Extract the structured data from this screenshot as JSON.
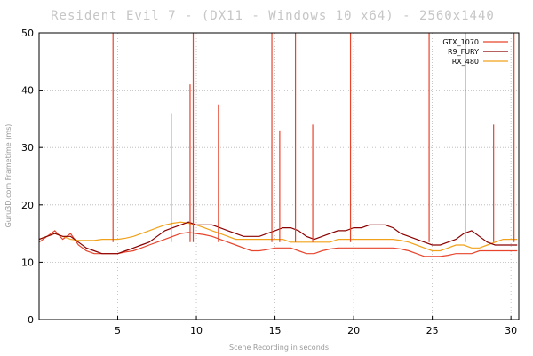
{
  "chart_data": {
    "type": "line",
    "title": "Resident Evil 7 - (DX11 - Windows 10 x64) - 2560x1440",
    "xlabel": "Scene Recording in seconds",
    "ylabel": "Guru3D.com Frametime (ms)",
    "xlim": [
      0,
      30.5
    ],
    "ylim": [
      0,
      50
    ],
    "x_ticks": [
      5,
      10,
      15,
      20,
      25,
      30
    ],
    "y_ticks": [
      0,
      10,
      20,
      30,
      40,
      50
    ],
    "grid": true,
    "legend_position": "top-right",
    "series": [
      {
        "name": "GTX_1070",
        "color": "#e8442c",
        "x": [
          0,
          0.5,
          1,
          1.5,
          2,
          2.5,
          3,
          3.5,
          4,
          4.5,
          5,
          5.5,
          6,
          6.5,
          7,
          7.5,
          8,
          8.5,
          9,
          9.5,
          10,
          10.5,
          11,
          11.5,
          12,
          12.5,
          13,
          13.5,
          14,
          14.5,
          15,
          15.5,
          16,
          16.5,
          17,
          17.5,
          18,
          18.5,
          19,
          19.5,
          20,
          20.5,
          21,
          21.5,
          22,
          22.5,
          23,
          23.5,
          24,
          24.5,
          25,
          25.5,
          26,
          26.5,
          27,
          27.5,
          28,
          28.5,
          29,
          29.5,
          30,
          30.4
        ],
        "y": [
          13.5,
          14.5,
          15.5,
          14.0,
          15.0,
          13.0,
          12.0,
          11.5,
          11.5,
          11.5,
          11.5,
          11.8,
          12.0,
          12.5,
          13.0,
          13.5,
          14.0,
          14.5,
          15.0,
          15.2,
          15.0,
          14.8,
          14.5,
          14.0,
          13.5,
          13.0,
          12.5,
          12.0,
          12.0,
          12.2,
          12.5,
          12.5,
          12.5,
          12.0,
          11.5,
          11.5,
          12.0,
          12.3,
          12.5,
          12.5,
          12.5,
          12.5,
          12.5,
          12.5,
          12.5,
          12.5,
          12.3,
          12.0,
          11.5,
          11.0,
          11.0,
          11.0,
          11.2,
          11.5,
          11.5,
          11.5,
          12.0,
          12.0,
          12.0,
          12.0,
          12.0,
          12.0
        ]
      },
      {
        "name": "R9_FURY",
        "color": "#8b0000",
        "x": [
          0,
          0.5,
          1,
          1.5,
          2,
          2.5,
          3,
          3.5,
          4,
          4.5,
          5,
          5.5,
          6,
          6.5,
          7,
          7.5,
          8,
          8.5,
          9,
          9.5,
          10,
          10.5,
          11,
          11.5,
          12,
          12.5,
          13,
          13.5,
          14,
          14.5,
          15,
          15.5,
          16,
          16.5,
          17,
          17.5,
          18,
          18.5,
          19,
          19.5,
          20,
          20.5,
          21,
          21.5,
          22,
          22.5,
          23,
          23.5,
          24,
          24.5,
          25,
          25.5,
          26,
          26.5,
          27,
          27.5,
          28,
          28.5,
          29,
          29.5,
          30,
          30.4
        ],
        "y": [
          14.0,
          14.5,
          15.0,
          14.5,
          14.5,
          13.5,
          12.5,
          12.0,
          11.5,
          11.5,
          11.5,
          12.0,
          12.5,
          13.0,
          13.5,
          14.5,
          15.5,
          16.0,
          16.5,
          17.0,
          16.5,
          16.5,
          16.5,
          16.0,
          15.5,
          15.0,
          14.5,
          14.5,
          14.5,
          15.0,
          15.5,
          16.0,
          16.0,
          15.5,
          14.5,
          14.0,
          14.5,
          15.0,
          15.5,
          15.5,
          16.0,
          16.0,
          16.5,
          16.5,
          16.5,
          16.0,
          15.0,
          14.5,
          14.0,
          13.5,
          13.0,
          13.0,
          13.5,
          14.0,
          15.0,
          15.5,
          14.5,
          13.5,
          13.0,
          13.0,
          13.0,
          13.0
        ]
      },
      {
        "name": "RX_480",
        "color": "#f2a21a",
        "x": [
          0,
          0.5,
          1,
          1.5,
          2,
          2.5,
          3,
          3.5,
          4,
          4.5,
          5,
          5.5,
          6,
          6.5,
          7,
          7.5,
          8,
          8.5,
          9,
          9.5,
          10,
          10.5,
          11,
          11.5,
          12,
          12.5,
          13,
          13.5,
          14,
          14.5,
          15,
          15.5,
          16,
          16.5,
          17,
          17.5,
          18,
          18.5,
          19,
          19.5,
          20,
          20.5,
          21,
          21.5,
          22,
          22.5,
          23,
          23.5,
          24,
          24.5,
          25,
          25.5,
          26,
          26.5,
          27,
          27.5,
          28,
          28.5,
          29,
          29.5,
          30,
          30.4
        ],
        "y": [
          14.0,
          14.5,
          15.0,
          14.5,
          14.0,
          13.8,
          13.8,
          13.8,
          14.0,
          14.0,
          14.0,
          14.2,
          14.5,
          15.0,
          15.5,
          16.0,
          16.5,
          16.8,
          17.0,
          16.8,
          16.5,
          16.0,
          15.5,
          15.0,
          14.5,
          14.0,
          14.0,
          14.0,
          14.0,
          14.0,
          14.0,
          14.0,
          13.5,
          13.5,
          13.5,
          13.5,
          13.5,
          13.5,
          14.0,
          14.0,
          14.0,
          14.0,
          14.0,
          14.0,
          14.0,
          14.0,
          13.8,
          13.5,
          13.0,
          12.5,
          12.0,
          12.0,
          12.5,
          13.0,
          13.0,
          12.5,
          12.5,
          13.0,
          13.5,
          14.0,
          14.0,
          14.0
        ]
      }
    ],
    "spikes": [
      {
        "x": 4.7,
        "y": 50,
        "color": "#e8442c"
      },
      {
        "x": 8.4,
        "y": 36,
        "color": "#e8442c"
      },
      {
        "x": 9.6,
        "y": 41,
        "color": "#e8442c"
      },
      {
        "x": 9.8,
        "y": 50,
        "color": "#e8442c"
      },
      {
        "x": 11.4,
        "y": 37.5,
        "color": "#e8442c"
      },
      {
        "x": 14.8,
        "y": 50,
        "color": "#e8442c"
      },
      {
        "x": 15.3,
        "y": 33,
        "color": "#e8442c"
      },
      {
        "x": 16.3,
        "y": 50,
        "color": "#e8442c"
      },
      {
        "x": 17.4,
        "y": 34,
        "color": "#e8442c"
      },
      {
        "x": 19.8,
        "y": 50,
        "color": "#e8442c"
      },
      {
        "x": 24.8,
        "y": 50,
        "color": "#e8442c"
      },
      {
        "x": 27.1,
        "y": 50,
        "color": "#e8442c"
      },
      {
        "x": 28.9,
        "y": 34,
        "color": "#e8442c"
      },
      {
        "x": 30.2,
        "y": 50,
        "color": "#e8442c"
      }
    ]
  }
}
